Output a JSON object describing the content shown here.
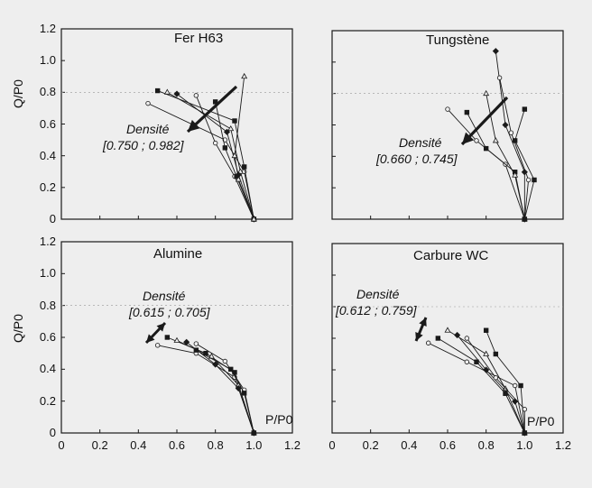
{
  "page": {
    "background": "#eeeeee",
    "ink": "#1a1a1a"
  },
  "chart_data": [
    {
      "type": "line",
      "title": "Fer H63",
      "annotation": {
        "label": "Densité",
        "range": "[0.750 ; 0.982]"
      },
      "xlim": [
        0,
        1.2
      ],
      "ylim": [
        0,
        1.2
      ],
      "series": [
        {
          "x": [
            0.45,
            0.85,
            0.95,
            1.0
          ],
          "y": [
            0.73,
            0.5,
            0.3,
            0.0
          ]
        },
        {
          "x": [
            0.5,
            0.9,
            0.95,
            1.0
          ],
          "y": [
            0.81,
            0.62,
            0.33,
            0.0
          ]
        },
        {
          "x": [
            0.55,
            0.88,
            0.93,
            1.0
          ],
          "y": [
            0.8,
            0.57,
            0.3,
            0.0
          ]
        },
        {
          "x": [
            0.6,
            0.86,
            0.92,
            1.0
          ],
          "y": [
            0.79,
            0.55,
            0.28,
            0.0
          ]
        },
        {
          "x": [
            0.7,
            0.8,
            0.9,
            1.0
          ],
          "y": [
            0.78,
            0.48,
            0.27,
            0.0
          ]
        },
        {
          "x": [
            0.8,
            0.85,
            0.91,
            1.0
          ],
          "y": [
            0.74,
            0.45,
            0.27,
            0.0
          ]
        },
        {
          "x": [
            0.95,
            0.9,
            0.92,
            1.0
          ],
          "y": [
            0.9,
            0.4,
            0.25,
            0.0
          ]
        }
      ]
    },
    {
      "type": "line",
      "title": "Tungstène",
      "annotation": {
        "label": "Densité",
        "range": "[0.660 ; 0.745]"
      },
      "xlim": [
        0,
        1.2
      ],
      "ylim": [
        0,
        1.2
      ],
      "series": [
        {
          "x": [
            0.6,
            0.75,
            0.9,
            1.0
          ],
          "y": [
            0.7,
            0.5,
            0.35,
            0.0
          ]
        },
        {
          "x": [
            0.7,
            0.8,
            0.95,
            1.0
          ],
          "y": [
            0.68,
            0.45,
            0.3,
            0.0
          ]
        },
        {
          "x": [
            0.8,
            0.85,
            0.95,
            1.0
          ],
          "y": [
            0.8,
            0.5,
            0.28,
            0.0
          ]
        },
        {
          "x": [
            0.85,
            0.9,
            1.0,
            1.0
          ],
          "y": [
            1.07,
            0.6,
            0.3,
            0.0
          ]
        },
        {
          "x": [
            0.87,
            0.93,
            1.02,
            1.0
          ],
          "y": [
            0.9,
            0.55,
            0.25,
            0.0
          ]
        },
        {
          "x": [
            1.0,
            0.95,
            1.05,
            1.0
          ],
          "y": [
            0.7,
            0.5,
            0.25,
            0.0
          ]
        }
      ]
    },
    {
      "type": "line",
      "title": "Alumine",
      "annotation": {
        "label": "Densité",
        "range": "[0.615 ; 0.705]"
      },
      "xlim": [
        0,
        1.2
      ],
      "ylim": [
        0,
        1.2
      ],
      "xlabel": "P/P0",
      "series": [
        {
          "x": [
            0.5,
            0.7,
            0.9,
            1.0
          ],
          "y": [
            0.55,
            0.5,
            0.35,
            0.0
          ]
        },
        {
          "x": [
            0.55,
            0.75,
            0.9,
            1.0
          ],
          "y": [
            0.6,
            0.5,
            0.38,
            0.0
          ]
        },
        {
          "x": [
            0.6,
            0.78,
            0.92,
            1.0
          ],
          "y": [
            0.58,
            0.48,
            0.3,
            0.0
          ]
        },
        {
          "x": [
            0.65,
            0.8,
            0.92,
            1.0
          ],
          "y": [
            0.57,
            0.43,
            0.28,
            0.0
          ]
        },
        {
          "x": [
            0.7,
            0.85,
            0.95,
            1.0
          ],
          "y": [
            0.56,
            0.45,
            0.27,
            0.0
          ]
        },
        {
          "x": [
            0.7,
            0.88,
            0.95,
            1.0
          ],
          "y": [
            0.52,
            0.4,
            0.25,
            0.0
          ]
        }
      ]
    },
    {
      "type": "line",
      "title": "Carbure WC",
      "annotation": {
        "label": "Densité",
        "range": "[0.612 ; 0.759]"
      },
      "xlim": [
        0,
        1.2
      ],
      "ylim": [
        0,
        1.2
      ],
      "xlabel": "P/P0",
      "series": [
        {
          "x": [
            0.5,
            0.7,
            0.95,
            1.0
          ],
          "y": [
            0.57,
            0.45,
            0.3,
            0.0
          ]
        },
        {
          "x": [
            0.55,
            0.75,
            0.9,
            1.0
          ],
          "y": [
            0.6,
            0.45,
            0.25,
            0.0
          ]
        },
        {
          "x": [
            0.6,
            0.8,
            0.9,
            1.0
          ],
          "y": [
            0.65,
            0.5,
            0.28,
            0.0
          ]
        },
        {
          "x": [
            0.65,
            0.8,
            0.95,
            1.0
          ],
          "y": [
            0.62,
            0.4,
            0.2,
            0.0
          ]
        },
        {
          "x": [
            0.7,
            0.85,
            1.0,
            1.0
          ],
          "y": [
            0.6,
            0.35,
            0.15,
            0.0
          ]
        },
        {
          "x": [
            0.8,
            0.85,
            0.98,
            1.0
          ],
          "y": [
            0.65,
            0.5,
            0.3,
            0.0
          ]
        }
      ]
    }
  ],
  "y_axis_label": "Q/P0",
  "y_ticks": [
    "0",
    "0.2",
    "0.4",
    "0.6",
    "0.8",
    "1.0",
    "1.2"
  ],
  "x_ticks": [
    "0",
    "0.2",
    "0.4",
    "0.6",
    "0.8",
    "1.0",
    "1.2"
  ]
}
